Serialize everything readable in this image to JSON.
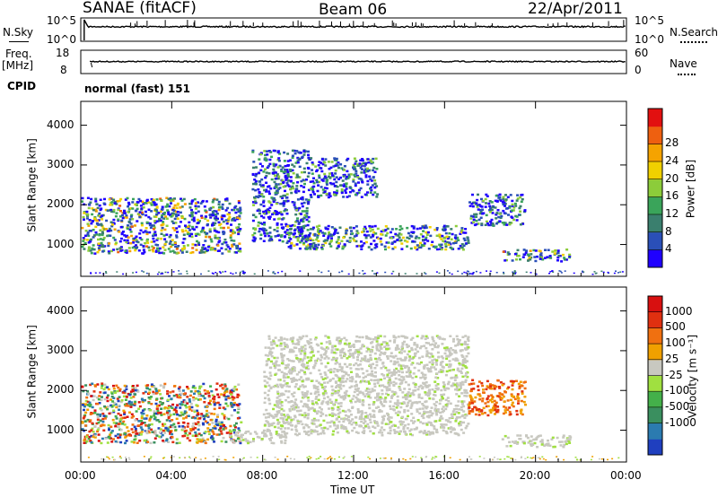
{
  "header": {
    "left_title": "SANAE (fitACF)",
    "center_title": "Beam 06",
    "right_title": "22/Apr/2011"
  },
  "status_panels": {
    "nsky": {
      "left_label": "N.Sky",
      "left_ticks": [
        "10^5",
        "10^0"
      ],
      "right_ticks": [
        "10^5",
        "10^0"
      ],
      "right_label": "N.Search"
    },
    "freq": {
      "left_label_line1": "Freq.",
      "left_label_line2": "[MHz]",
      "left_ticks": [
        "18",
        "8"
      ],
      "right_ticks": [
        "60",
        "0"
      ],
      "right_label": "Nave"
    },
    "cpid": {
      "label": "CPID",
      "value": "normal (fast) 151"
    }
  },
  "x_axis": {
    "label": "Time UT",
    "ticks": [
      "00:00",
      "04:00",
      "08:00",
      "12:00",
      "16:00",
      "20:00",
      "00:00"
    ]
  },
  "chart_data": [
    {
      "type": "heatmap",
      "panel": "power",
      "ylabel": "Slant Range [km]",
      "y_ticks": [
        "1000",
        "2000",
        "3000",
        "4000"
      ],
      "ylim": [
        200,
        4600
      ],
      "xlim_hours": [
        0,
        24
      ],
      "colorbar": {
        "label": "Power [dB]",
        "ticks": [
          "4",
          "8",
          "12",
          "16",
          "20",
          "24",
          "28"
        ],
        "range": [
          0,
          30
        ],
        "colors": [
          "#1f00ff",
          "#2a4fb8",
          "#3a7f6e",
          "#3aa45a",
          "#8ccc3a",
          "#f0d000",
          "#f5a300",
          "#ee6010",
          "#e21010"
        ]
      },
      "echo_regions": [
        {
          "t_start": 0.0,
          "t_end": 7.0,
          "r_min": 800,
          "r_max": 2200,
          "level": "strong"
        },
        {
          "t_start": 7.5,
          "t_end": 10.0,
          "r_min": 1100,
          "r_max": 3400,
          "level": "weak"
        },
        {
          "t_start": 9.0,
          "t_end": 17.0,
          "r_min": 900,
          "r_max": 1500,
          "level": "moderate"
        },
        {
          "t_start": 10.0,
          "t_end": 13.0,
          "r_min": 2200,
          "r_max": 3200,
          "level": "weak"
        },
        {
          "t_start": 18.5,
          "t_end": 21.5,
          "r_min": 600,
          "r_max": 900,
          "level": "strong"
        },
        {
          "t_start": 17.0,
          "t_end": 19.5,
          "r_min": 1500,
          "r_max": 2300,
          "level": "weak"
        }
      ]
    },
    {
      "type": "heatmap",
      "panel": "velocity",
      "ylabel": "Slant Range [km]",
      "y_ticks": [
        "1000",
        "2000",
        "3000",
        "4000"
      ],
      "ylim": [
        200,
        4600
      ],
      "xlim_hours": [
        0,
        24
      ],
      "colorbar": {
        "label": "Velocity [m s⁻¹]",
        "ticks": [
          "1000",
          "500",
          "100",
          "25",
          "-25",
          "-100",
          "-500",
          "-1000"
        ],
        "colors": [
          "#1f3fbf",
          "#2b7bb0",
          "#3a8f5f",
          "#44b04a",
          "#a0e040",
          "#c8c8c0",
          "#f0a000",
          "#f07010",
          "#e03010",
          "#d81010"
        ]
      },
      "echo_regions": [
        {
          "t_start": 0.0,
          "t_end": 7.0,
          "r_min": 700,
          "r_max": 2200,
          "dominant": "mixed"
        },
        {
          "t_start": 6.5,
          "t_end": 9.0,
          "r_min": 700,
          "r_max": 1000,
          "dominant": "ground scatter"
        },
        {
          "t_start": 8.0,
          "t_end": 17.0,
          "r_min": 900,
          "r_max": 3400,
          "dominant": "ground scatter"
        },
        {
          "t_start": 17.0,
          "t_end": 19.5,
          "r_min": 1400,
          "r_max": 2300,
          "dominant": "negative"
        },
        {
          "t_start": 18.5,
          "t_end": 21.5,
          "r_min": 600,
          "r_max": 900,
          "dominant": "ground scatter"
        }
      ]
    }
  ]
}
